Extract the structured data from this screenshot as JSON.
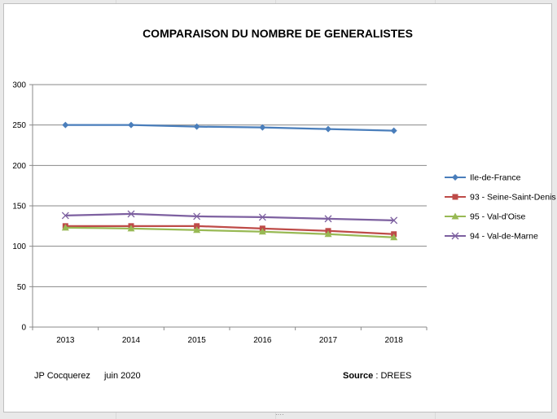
{
  "chart_data": {
    "type": "line",
    "title": "COMPARAISON DU NOMBRE DE GENERALISTES",
    "xlabel": "",
    "ylabel": "",
    "categories": [
      "2013",
      "2014",
      "2015",
      "2016",
      "2017",
      "2018"
    ],
    "ylim": [
      0,
      300
    ],
    "yticks": [
      0,
      50,
      100,
      150,
      200,
      250,
      300
    ],
    "grid": true,
    "legend_position": "right",
    "series": [
      {
        "name": "Ile-de-France",
        "values": [
          250,
          250,
          248,
          247,
          245,
          243
        ],
        "color": "#4a7ebb",
        "marker": "diamond"
      },
      {
        "name": "93 - Seine-Saint-Denis",
        "values": [
          125,
          125,
          125,
          122,
          119,
          115
        ],
        "color": "#be4b48",
        "marker": "square"
      },
      {
        "name": "95 - Val-d'Oise",
        "values": [
          123,
          122,
          120,
          118,
          115,
          111
        ],
        "color": "#98b954",
        "marker": "triangle"
      },
      {
        "name": "94 - Val-de-Marne",
        "values": [
          138,
          140,
          137,
          136,
          134,
          132
        ],
        "color": "#7d60a0",
        "marker": "x"
      }
    ]
  },
  "footer": {
    "author": "JP Cocquerez",
    "date": "juin 2020",
    "source_label": "Source",
    "source_sep": " : ",
    "source_value": "DREES"
  }
}
